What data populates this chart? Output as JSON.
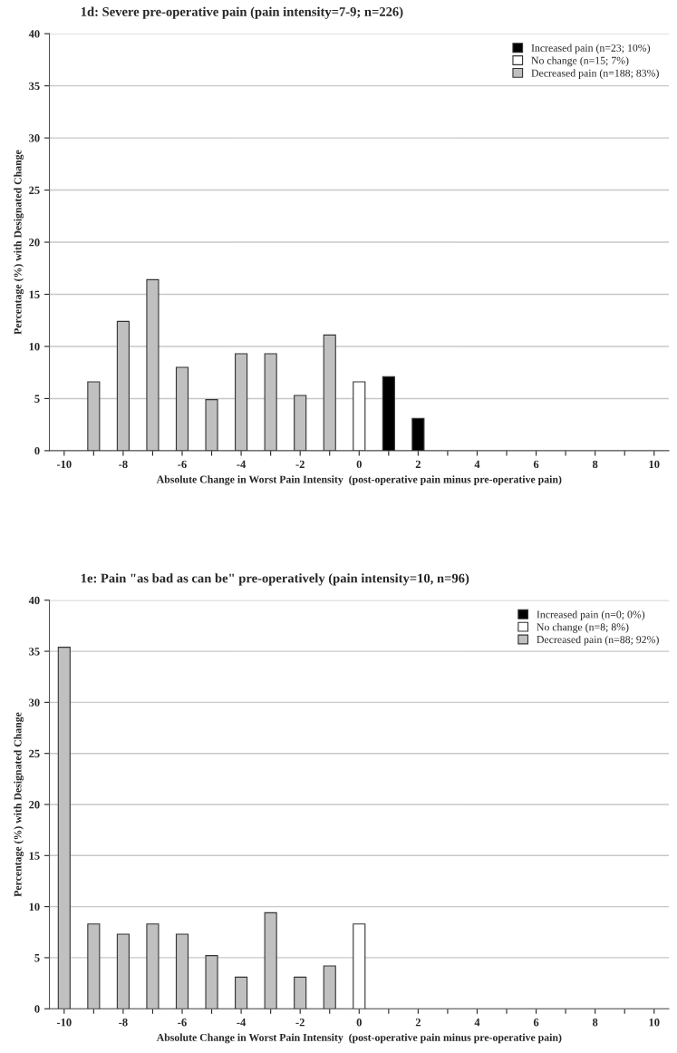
{
  "chart_data": [
    {
      "type": "bar",
      "title": "1d: Severe pre-operative pain (pain intensity=7-9; n=226)",
      "xlabel": "Absolute Change in Worst Pain Intensity  (post-operative pain minus pre-operative pain)",
      "ylabel": "Percentage (%) with Designated Change",
      "categories": [
        "-10",
        null,
        "-8",
        null,
        "-6",
        null,
        "-4",
        null,
        "-2",
        null,
        "0",
        null,
        "2",
        null,
        "4",
        null,
        "6",
        null,
        "8",
        null,
        "10"
      ],
      "series": [
        {
          "name": "Increased pain (n=23; 10%)",
          "color": "#000000",
          "values": [
            null,
            null,
            null,
            null,
            null,
            null,
            null,
            null,
            null,
            null,
            null,
            7.1,
            3.1,
            null,
            null,
            null,
            null,
            null,
            null,
            null,
            null
          ]
        },
        {
          "name": "No change (n=15; 7%)",
          "color": "#ffffff",
          "values": [
            null,
            null,
            null,
            null,
            null,
            null,
            null,
            null,
            null,
            null,
            6.6,
            null,
            null,
            null,
            null,
            null,
            null,
            null,
            null,
            null,
            null
          ]
        },
        {
          "name": "Decreased pain (n=188; 83%)",
          "color": "#c0c0c0",
          "values": [
            null,
            6.6,
            12.4,
            16.4,
            8.0,
            4.9,
            9.3,
            9.3,
            5.3,
            11.1,
            null,
            null,
            null,
            null,
            null,
            null,
            null,
            null,
            null,
            null,
            null
          ]
        }
      ],
      "ylim": [
        0,
        40
      ],
      "yticks": [
        0,
        5,
        10,
        15,
        20,
        25,
        30,
        35,
        40
      ],
      "grid": "y",
      "legend": "top right"
    },
    {
      "type": "bar",
      "title": "1e: Pain \"as bad as can be\" pre-operatively (pain intensity=10, n=96)",
      "xlabel": "Absolute Change in Worst Pain Intensity  (post-operative pain minus pre-operative pain)",
      "ylabel": "Percentage (%) with Designated Change",
      "categories": [
        "-10",
        null,
        "-8",
        null,
        "-6",
        null,
        "-4",
        null,
        "-2",
        null,
        "0",
        null,
        "2",
        null,
        "4",
        null,
        "6",
        null,
        "8",
        null,
        "10"
      ],
      "series": [
        {
          "name": "Increased pain (n=0; 0%)",
          "color": "#000000",
          "values": [
            null,
            null,
            null,
            null,
            null,
            null,
            null,
            null,
            null,
            null,
            null,
            null,
            null,
            null,
            null,
            null,
            null,
            null,
            null,
            null,
            null
          ]
        },
        {
          "name": "No change (n=8; 8%)",
          "color": "#ffffff",
          "values": [
            null,
            null,
            null,
            null,
            null,
            null,
            null,
            null,
            null,
            null,
            8.3,
            null,
            null,
            null,
            null,
            null,
            null,
            null,
            null,
            null,
            null
          ]
        },
        {
          "name": "Decreased pain (n=88; 92%)",
          "color": "#c0c0c0",
          "values": [
            35.4,
            8.3,
            7.3,
            8.3,
            7.3,
            5.2,
            3.1,
            9.4,
            3.1,
            4.2,
            null,
            null,
            null,
            null,
            null,
            null,
            null,
            null,
            null,
            null,
            null
          ]
        }
      ],
      "ylim": [
        0,
        40
      ],
      "yticks": [
        0,
        5,
        10,
        15,
        20,
        25,
        30,
        35,
        40
      ],
      "grid": "y",
      "legend": "top right"
    }
  ]
}
